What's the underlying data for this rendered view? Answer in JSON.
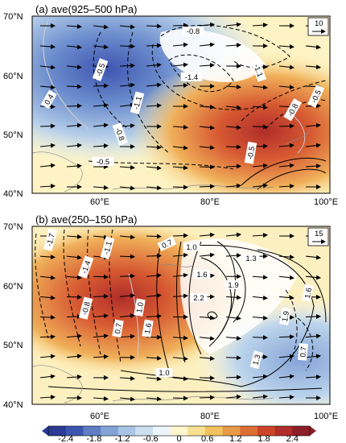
{
  "panels": [
    {
      "id": "a",
      "title": "(a) ave(925–500 hPa)",
      "ref_vector": "10",
      "lat_ticks": [
        "70°N",
        "60°N",
        "50°N",
        "40°N"
      ],
      "lon_ticks": [
        "60°E",
        "80°E",
        "100°E"
      ],
      "contour_labels": [
        "0.4",
        "-0.5",
        "-1.1",
        "-0.8",
        "-0.5",
        "-1.4",
        "-0.8",
        "-1.1",
        "-0.8",
        "-0.5",
        "-0.5"
      ]
    },
    {
      "id": "b",
      "title": "(b) ave(250–150 hPa)",
      "ref_vector": "15",
      "lat_ticks": [
        "70°N",
        "60°N",
        "50°N",
        "40°N"
      ],
      "lon_ticks": [
        "60°E",
        "80°E",
        "100°E"
      ],
      "contour_labels": [
        "-1.7",
        "-1.4",
        "-1.1",
        "-0.8",
        "0.7",
        "1.0",
        "1.3",
        "1.6",
        "1.9",
        "2.2",
        "1.0",
        "0.7",
        "1.6",
        "1.9",
        "1.6",
        "1.3",
        "0.7",
        "1.0"
      ]
    }
  ],
  "colorbar": {
    "ticks": [
      "-2.4",
      "-1.8",
      "-1.2",
      "-0.6",
      "0",
      "0.6",
      "1.2",
      "1.8",
      "2.4"
    ],
    "colors": [
      "#2b3a94",
      "#3e55b0",
      "#5f7cc4",
      "#84a3d6",
      "#a9c5e6",
      "#cde0f0",
      "#eef5fa",
      "#fdf6cf",
      "#f7e08f",
      "#f2c25e",
      "#e99a45",
      "#dd6e34",
      "#cc452a",
      "#b02d2a",
      "#8c1f28"
    ]
  }
}
